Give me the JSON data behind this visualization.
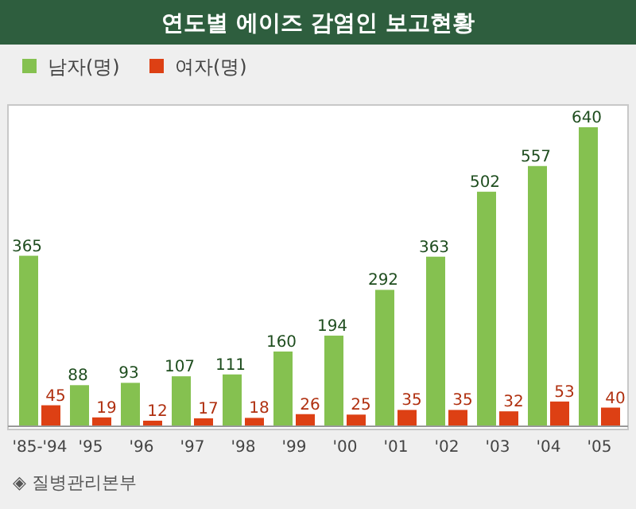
{
  "chart_data": {
    "type": "bar",
    "title": "연도별 에이즈 감염인 보고현황",
    "categories": [
      "'85-'94",
      "'95",
      "'96",
      "'97",
      "'98",
      "'99",
      "'00",
      "'01",
      "'02",
      "'03",
      "'04",
      "'05"
    ],
    "series": [
      {
        "name": "남자(명)",
        "color": "#85c150",
        "values": [
          365,
          88,
          93,
          107,
          111,
          160,
          194,
          292,
          363,
          502,
          557,
          640
        ]
      },
      {
        "name": "여자(명)",
        "color": "#dd4014",
        "values": [
          45,
          19,
          12,
          17,
          18,
          26,
          25,
          35,
          35,
          32,
          53,
          40
        ]
      }
    ],
    "data_labels": true,
    "legend": "top left",
    "grid": false,
    "annotations": [
      "◈ 질병관리본부"
    ]
  }
}
